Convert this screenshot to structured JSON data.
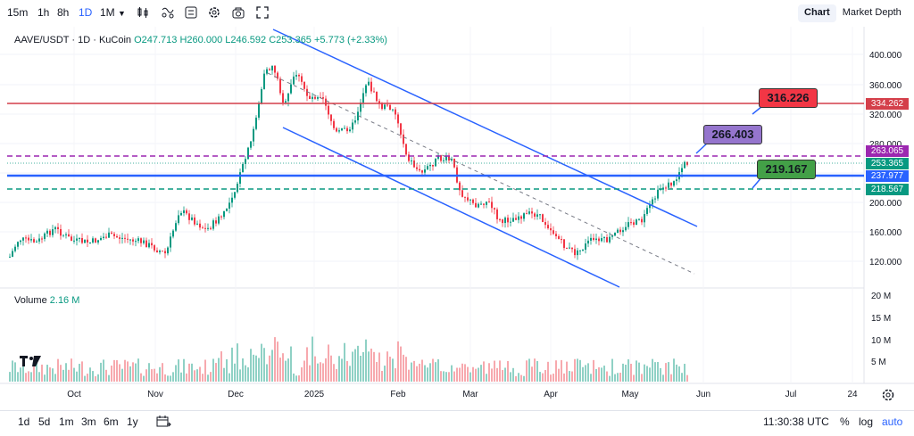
{
  "toolbar": {
    "intervals": [
      "15m",
      "1h",
      "8h",
      "1D",
      "1M"
    ],
    "active_interval": "1D",
    "chart_tab": "Chart",
    "depth_tab": "Market Depth"
  },
  "legend": {
    "symbol": "AAVE/USDT · 1D · KuCoin",
    "open": "O247.713",
    "high": "H260.000",
    "low": "L246.592",
    "close": "C253.365",
    "change": "+5.773 (+2.33%)"
  },
  "volume": {
    "label": "Volume",
    "value": "2.16 M"
  },
  "price_axis": {
    "ticks": [
      "400.000",
      "360.000",
      "320.000",
      "280.000",
      "240.000",
      "200.000",
      "160.000",
      "120.000"
    ],
    "volume_ticks": [
      "20 M",
      "15 M",
      "10 M",
      "5 M"
    ]
  },
  "price_boxes": {
    "resistance": "334.262",
    "dash_top": "263.065",
    "last": "253.365",
    "support": "237.977",
    "dash_bottom": "218.567"
  },
  "callouts": {
    "red": "316.226",
    "purple": "266.403",
    "green": "219.167"
  },
  "time_axis": [
    "Oct",
    "Nov",
    "Dec",
    "2025",
    "Feb",
    "Mar",
    "Apr",
    "May",
    "Jun",
    "Jul",
    "24"
  ],
  "bottom": {
    "ranges": [
      "1d",
      "5d",
      "1m",
      "3m",
      "6m",
      "1y"
    ],
    "clock": "11:30:38 UTC",
    "percent": "%",
    "log": "log",
    "auto": "auto"
  },
  "colors": {
    "up": "#089981",
    "down": "#f23645",
    "channel": "#2962ff",
    "resistance": "#d43f4a",
    "support": "#2962ff",
    "dash_purple": "#9c27b0",
    "dash_green": "#089981"
  }
}
